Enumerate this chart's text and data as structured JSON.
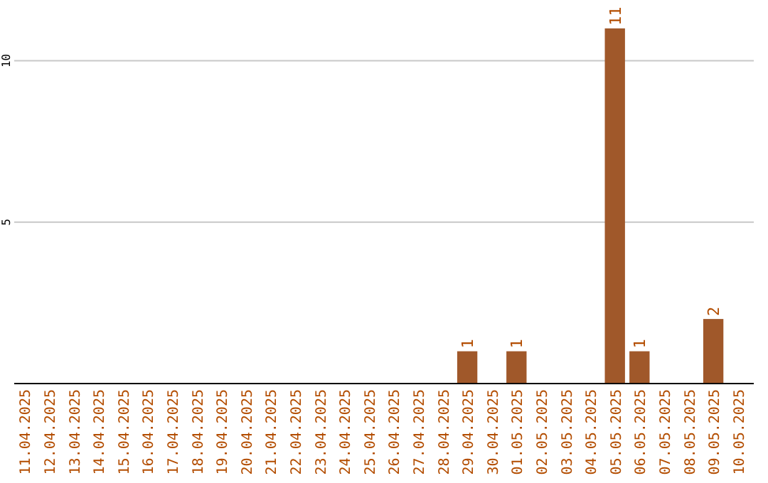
{
  "chart_data": {
    "type": "bar",
    "categories": [
      "11.04.2025",
      "12.04.2025",
      "13.04.2025",
      "14.04.2025",
      "15.04.2025",
      "16.04.2025",
      "17.04.2025",
      "18.04.2025",
      "19.04.2025",
      "20.04.2025",
      "21.04.2025",
      "22.04.2025",
      "23.04.2025",
      "24.04.2025",
      "25.04.2025",
      "26.04.2025",
      "27.04.2025",
      "28.04.2025",
      "29.04.2025",
      "30.04.2025",
      "01.05.2025",
      "02.05.2025",
      "03.05.2025",
      "04.05.2025",
      "05.05.2025",
      "06.05.2025",
      "07.05.2025",
      "08.05.2025",
      "09.05.2025",
      "10.05.2025"
    ],
    "values": [
      0,
      0,
      0,
      0,
      0,
      0,
      0,
      0,
      0,
      0,
      0,
      0,
      0,
      0,
      0,
      0,
      0,
      0,
      1,
      0,
      1,
      0,
      0,
      0,
      11,
      1,
      0,
      0,
      2,
      0
    ],
    "value_labels": [
      null,
      null,
      null,
      null,
      null,
      null,
      null,
      null,
      null,
      null,
      null,
      null,
      null,
      null,
      null,
      null,
      null,
      null,
      "1",
      null,
      "1",
      null,
      null,
      null,
      "11",
      "1",
      null,
      null,
      "2",
      null
    ],
    "color": "#a0582a",
    "ylim": [
      0,
      11
    ],
    "yticks": [
      5,
      10
    ],
    "grid": "y"
  }
}
